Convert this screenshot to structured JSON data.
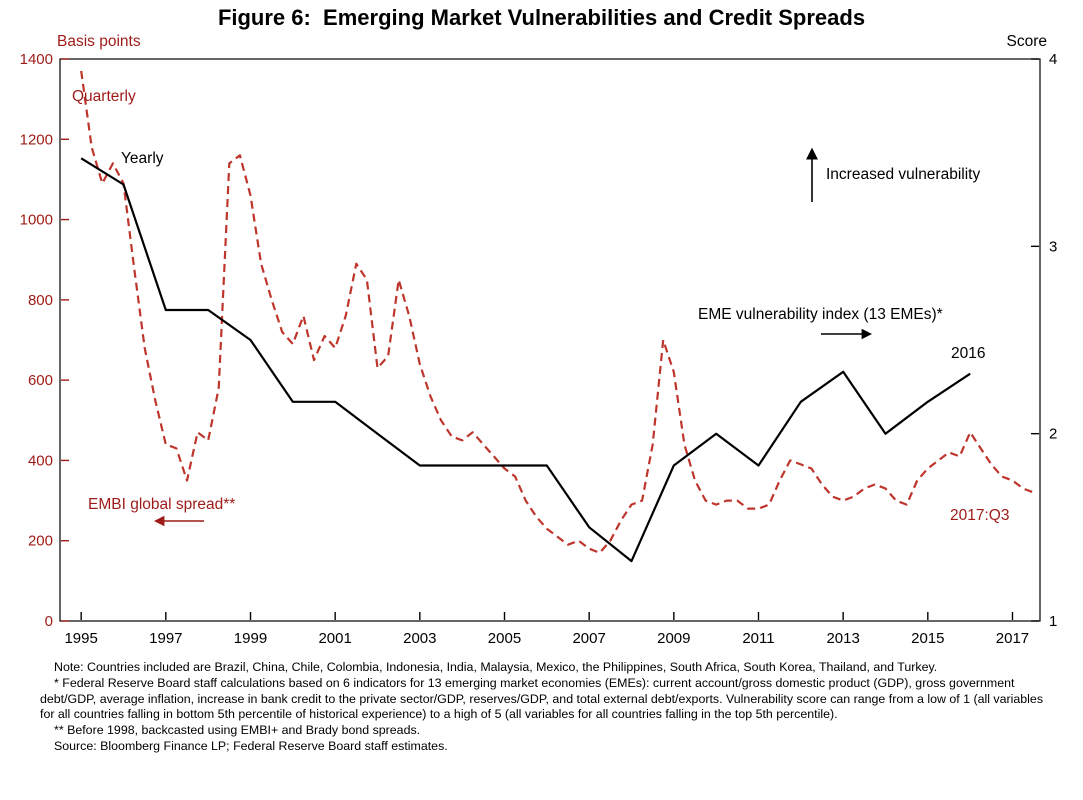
{
  "title": "Figure 6:  Emerging Market Vulnerabilities and Credit Spreads",
  "colors": {
    "axis_red": "#9E1B18",
    "line_red": "#BE352C",
    "black": "#000000"
  },
  "chart": {
    "left_axis": {
      "label": "Basis points",
      "min": 0,
      "max": 1400,
      "ticks": [
        0,
        200,
        400,
        600,
        800,
        1000,
        1200,
        1400
      ]
    },
    "right_axis": {
      "label": "Score",
      "min": 1,
      "max": 4,
      "ticks": [
        1,
        2,
        3,
        4
      ]
    },
    "x_axis": {
      "tick_labels": [
        1995,
        1997,
        1999,
        2001,
        2003,
        2005,
        2007,
        2009,
        2011,
        2013,
        2015,
        2017
      ]
    },
    "annotations": {
      "quarterly": "Quarterly",
      "yearly": "Yearly",
      "increased_vulnerability": "Increased vulnerability",
      "eme_index": "EME vulnerability index (13 EMEs)*",
      "end_black": "2016",
      "embi": "EMBI global spread**",
      "end_red": "2017:Q3"
    }
  },
  "chart_data": {
    "type": "line",
    "title": "Figure 6: Emerging Market Vulnerabilities and Credit Spreads",
    "x_range": [
      1994.5,
      2017.65
    ],
    "grid": false,
    "series": [
      {
        "name": "EMBI global spread**",
        "axis": "left",
        "unit": "basis points",
        "style": "dashed",
        "color_key": "line_red",
        "frequency": "quarterly",
        "x_start": 1995.0,
        "x_step": 0.25,
        "values": [
          1370,
          1180,
          1090,
          1140,
          1090,
          880,
          680,
          550,
          440,
          430,
          350,
          470,
          450,
          580,
          1140,
          1160,
          1060,
          890,
          800,
          720,
          690,
          760,
          650,
          710,
          680,
          760,
          890,
          850,
          630,
          660,
          850,
          760,
          640,
          560,
          500,
          460,
          450,
          470,
          440,
          410,
          380,
          360,
          300,
          260,
          230,
          210,
          190,
          200,
          180,
          170,
          200,
          250,
          290,
          300,
          440,
          700,
          620,
          440,
          350,
          300,
          290,
          300,
          300,
          280,
          280,
          290,
          350,
          400,
          390,
          380,
          340,
          310,
          300,
          310,
          330,
          340,
          330,
          300,
          290,
          350,
          380,
          400,
          420,
          410,
          470,
          430,
          390,
          360,
          350,
          330,
          320
        ]
      },
      {
        "name": "EME vulnerability index (13 EMEs)*",
        "axis": "right",
        "unit": "score",
        "style": "solid",
        "color_key": "black",
        "frequency": "yearly",
        "x_start": 1995,
        "x_step": 1,
        "values": [
          3.47,
          3.33,
          2.66,
          2.66,
          2.5,
          2.17,
          2.17,
          2.0,
          1.83,
          1.83,
          1.83,
          1.83,
          1.5,
          1.32,
          1.83,
          2.0,
          1.83,
          2.17,
          2.33,
          2.0,
          2.17,
          2.32
        ]
      }
    ]
  },
  "notes": {
    "note1": "Note: Countries included are Brazil, China, Chile, Colombia, Indonesia, India, Malaysia, Mexico, the Philippines, South Africa, South Korea, Thailand, and Turkey.",
    "note2": "* Federal Reserve Board staff calculations based on 6 indicators for 13 emerging market economies (EMEs): current account/gross domestic product (GDP), gross government debt/GDP, average inflation, increase in bank credit to the private sector/GDP, reserves/GDP, and total external debt/exports. Vulnerability score can range from a low of 1 (all variables for all countries falling in bottom 5th percentile of historical experience) to a high of 5 (all variables for all countries falling in the top 5th percentile).",
    "note3": "** Before 1998, backcasted using EMBI+ and Brady bond spreads.",
    "note4": "Source: Bloomberg Finance LP; Federal Reserve Board staff estimates."
  }
}
